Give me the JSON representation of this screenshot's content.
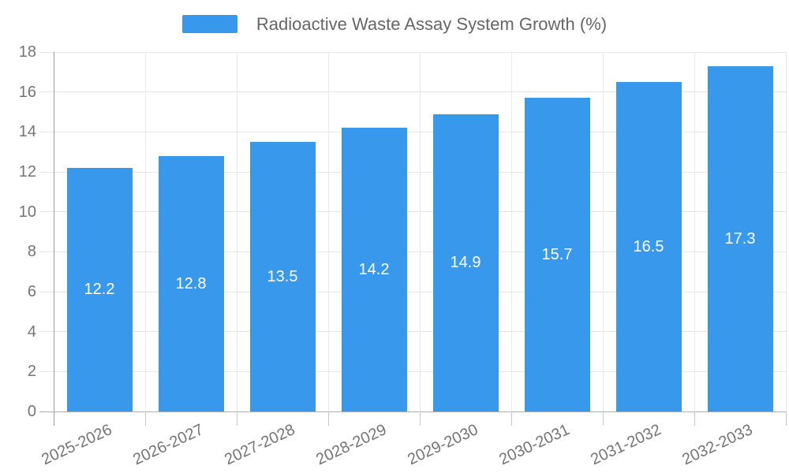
{
  "legend": {
    "label": "Radioactive Waste Assay System Growth (%)",
    "swatch_color": "#3899ec"
  },
  "chart_data": {
    "type": "bar",
    "title": "Radioactive Waste Assay System Growth (%)",
    "categories": [
      "2025-2026",
      "2026-2027",
      "2027-2028",
      "2028-2029",
      "2029-2030",
      "2030-2031",
      "2031-2032",
      "2032-2033"
    ],
    "values": [
      12.2,
      12.8,
      13.5,
      14.2,
      14.9,
      15.7,
      16.5,
      17.3
    ],
    "value_labels": [
      "12.2",
      "12.8",
      "13.5",
      "14.2",
      "14.9",
      "15.7",
      "16.5",
      "17.3"
    ],
    "xlabel": "",
    "ylabel": "",
    "ylim": [
      0,
      18
    ],
    "yticks": [
      0,
      2,
      4,
      6,
      8,
      10,
      12,
      14,
      16,
      18
    ],
    "grid": true,
    "legend_position": "top-center",
    "bar_color": "#3899ec",
    "value_label_color": "#ffffff"
  },
  "colors": {
    "background": "#ffffff",
    "axis_text": "#757575",
    "title_text": "#666666",
    "gridline": "#e9e9e9",
    "axis_line": "#9e9e9e",
    "baseline": "#b0b0b0"
  }
}
